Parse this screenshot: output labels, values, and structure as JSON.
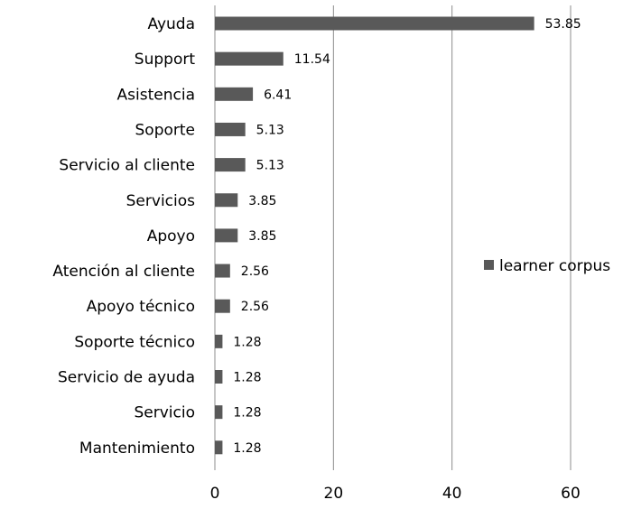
{
  "chart_data": {
    "type": "bar",
    "orientation": "horizontal",
    "categories": [
      "Ayuda",
      "Support",
      "Asistencia",
      "Soporte",
      "Servicio al cliente",
      "Servicios",
      "Apoyo",
      "Atención al cliente",
      "Apoyo técnico",
      "Soporte técnico",
      "Servicio de ayuda",
      "Servicio",
      "Mantenimiento"
    ],
    "series": [
      {
        "name": "learner corpus",
        "color": "#595959",
        "values": [
          53.85,
          11.54,
          6.41,
          5.13,
          5.13,
          3.85,
          3.85,
          2.56,
          2.56,
          1.28,
          1.28,
          1.28,
          1.28
        ],
        "labels": [
          "53.85",
          "11.54",
          "6.41",
          "5.13",
          "5.13",
          "3.85",
          "3.85",
          "2.56",
          "2.56",
          "1.28",
          "1.28",
          "1.28",
          "1.28"
        ]
      }
    ],
    "xlim": [
      0,
      60
    ],
    "xticks": [
      0,
      20,
      40,
      60
    ],
    "xtick_labels": [
      "0",
      "20",
      "40",
      "60"
    ],
    "grid": true,
    "legend_position": "right"
  }
}
